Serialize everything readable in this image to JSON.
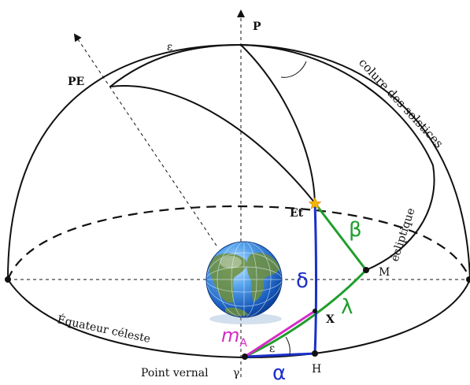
{
  "labels": {
    "pole": "P",
    "ecliptic_pole": "PE",
    "epsilon_top": "ε",
    "star": "Et",
    "solstice_colure": "colure des solstices",
    "ecliptic": "écliptique",
    "point_m": "M",
    "point_x": "X",
    "point_h": "H",
    "equator": "Équateur céleste",
    "vernal_point": "Point vernal",
    "gamma": "γ",
    "epsilon_bottom": "ε",
    "beta": "β",
    "delta": "δ",
    "lambda": "λ",
    "alpha": "α",
    "m_letter": "m",
    "m_subscript": "A"
  },
  "colors": {
    "outline": "#111111",
    "green_lines": "#1f9e2c",
    "blue_lines": "#1a2fc9",
    "magenta_line": "#d62bc6",
    "star": "#f5b400",
    "globe_dark": "#0b3f96",
    "globe_light": "#6fb4f2",
    "land": "#6f8f3a"
  }
}
